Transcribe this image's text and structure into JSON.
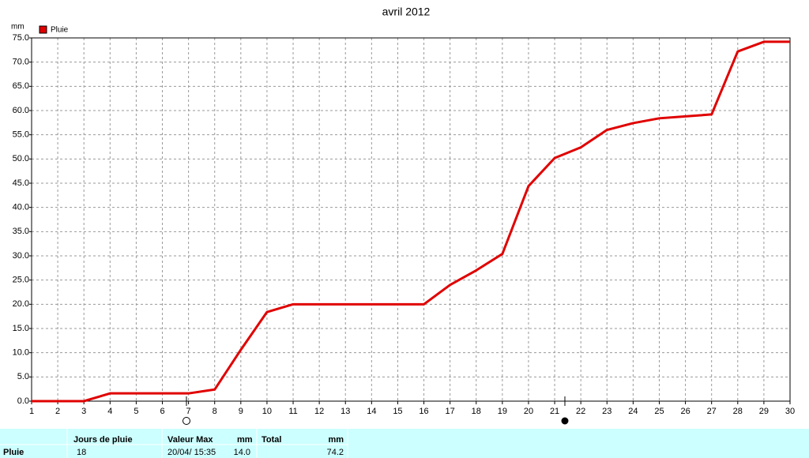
{
  "chart_data": {
    "type": "line",
    "title": "avril 2012",
    "y_unit": "mm",
    "x": [
      1,
      2,
      3,
      4,
      5,
      6,
      7,
      8,
      9,
      10,
      11,
      12,
      13,
      14,
      15,
      16,
      17,
      18,
      19,
      20,
      21,
      22,
      23,
      24,
      25,
      26,
      27,
      28,
      29,
      30
    ],
    "series": [
      {
        "name": "Pluie",
        "color": "#e00000",
        "values": [
          0,
          0,
          0,
          1.6,
          1.6,
          1.6,
          1.6,
          2.4,
          10.6,
          18.4,
          20.0,
          20.0,
          20.0,
          20.0,
          20.0,
          20.0,
          24.0,
          27.0,
          30.4,
          44.4,
          50.2,
          52.4,
          56.0,
          57.4,
          58.4,
          58.8,
          59.2,
          72.2,
          74.2,
          74.2
        ]
      }
    ],
    "xlim": [
      1,
      30
    ],
    "xticks": [
      1,
      2,
      3,
      4,
      5,
      6,
      7,
      8,
      9,
      10,
      11,
      12,
      13,
      14,
      15,
      16,
      17,
      18,
      19,
      20,
      21,
      22,
      23,
      24,
      25,
      26,
      27,
      28,
      29,
      30
    ],
    "ylim": [
      0,
      75
    ],
    "yticks": [
      {
        "value": 0,
        "label": "0.0"
      },
      {
        "value": 5,
        "label": "5.0"
      },
      {
        "value": 10,
        "label": "10.0"
      },
      {
        "value": 15,
        "label": "15.0"
      },
      {
        "value": 20,
        "label": "20.0"
      },
      {
        "value": 25,
        "label": "25.0"
      },
      {
        "value": 30,
        "label": "30.0"
      },
      {
        "value": 35,
        "label": "35.0"
      },
      {
        "value": 40,
        "label": "40.0"
      },
      {
        "value": 45,
        "label": "45.0"
      },
      {
        "value": 50,
        "label": "50.0"
      },
      {
        "value": 55,
        "label": "55.0"
      },
      {
        "value": 60,
        "label": "60.0"
      },
      {
        "value": 65,
        "label": "65.0"
      },
      {
        "value": 70,
        "label": "70.0"
      },
      {
        "value": 75,
        "label": "75.0"
      }
    ],
    "grid": true
  },
  "table": {
    "header": [
      "Jours de pluie",
      "Valeur Max",
      "mm",
      "Total",
      "mm"
    ],
    "rows": [
      [
        "Pluie",
        "18",
        "20/04/ 15:35",
        "14.0",
        "74.2"
      ]
    ]
  }
}
